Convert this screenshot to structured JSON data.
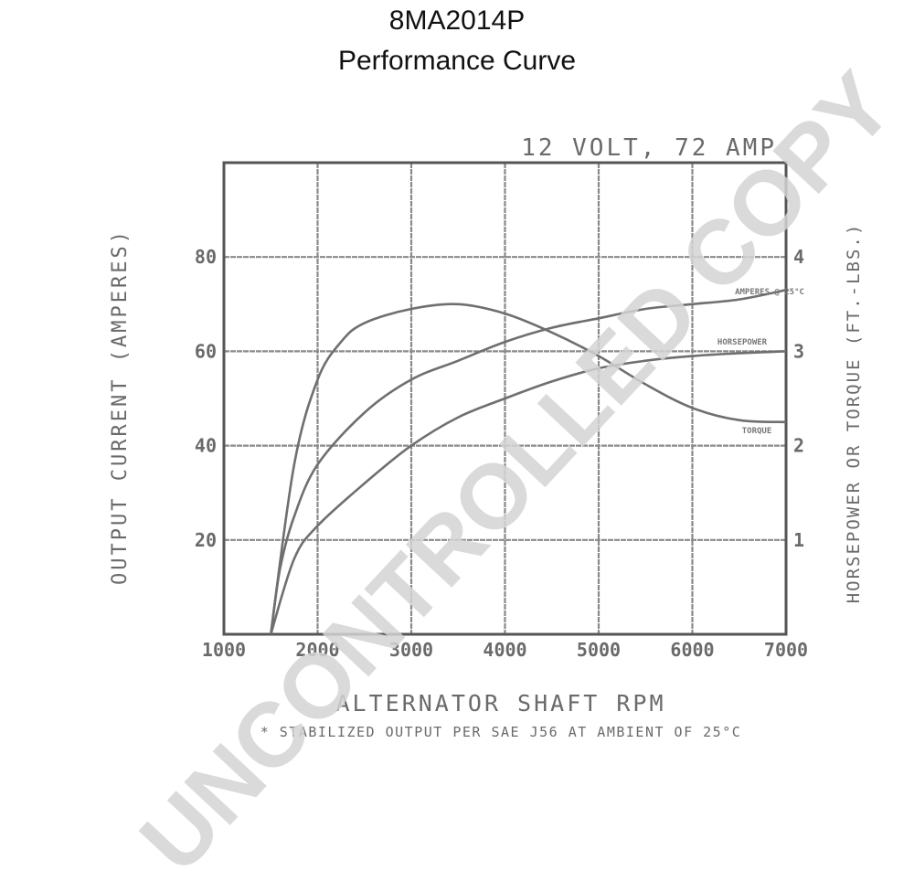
{
  "title_line1": "8MA2014P",
  "title_line2": "Performance Curve",
  "watermark": "UNCONTROLLED COPY",
  "chart_data": {
    "type": "line",
    "subtitle": "12 VOLT, 72 AMP",
    "xlabel": "ALTERNATOR SHAFT RPM",
    "ylabel": "OUTPUT CURRENT (AMPERES)",
    "y2label": "HORSEPOWER OR TORQUE (FT.-LBS.)",
    "footnote": "* STABILIZED OUTPUT PER SAE J56 AT AMBIENT OF 25°C",
    "xlim": [
      1000,
      7000
    ],
    "ylim": [
      0,
      100
    ],
    "y2lim": [
      0,
      5
    ],
    "xticks": [
      1000,
      2000,
      3000,
      4000,
      5000,
      6000,
      7000
    ],
    "yticks": [
      20,
      40,
      60,
      80
    ],
    "y2ticks": [
      1,
      2,
      3,
      4
    ],
    "grid": true,
    "colors": {
      "curve": "#6f6f6f",
      "grid": "#8a8a8a",
      "frame": "#555555",
      "text": "#6a6a6a",
      "watermark": "#d4d4d4"
    },
    "series": [
      {
        "name": "AMPS",
        "axis": "left",
        "label": "AMPERES @ 25°C",
        "x": [
          1500,
          1600,
          1750,
          2000,
          2500,
          3000,
          3500,
          4000,
          4500,
          5000,
          5500,
          6000,
          6500,
          7000
        ],
        "y": [
          0,
          14,
          25,
          36,
          47,
          54,
          58,
          62,
          65,
          67,
          69,
          70,
          71,
          73
        ]
      },
      {
        "name": "HORSEPOWER",
        "axis": "right",
        "label": "HORSEPOWER",
        "x": [
          1500,
          1750,
          2000,
          2500,
          3000,
          3500,
          4000,
          4500,
          5000,
          5500,
          6000,
          6500,
          7000
        ],
        "y": [
          0.0,
          0.8,
          1.15,
          1.6,
          2.0,
          2.3,
          2.5,
          2.68,
          2.82,
          2.9,
          2.95,
          2.98,
          3.0
        ]
      },
      {
        "name": "TORQUE",
        "axis": "right",
        "label": "TORQUE",
        "x": [
          1500,
          1750,
          2000,
          2250,
          2500,
          3000,
          3500,
          4000,
          4500,
          5000,
          5500,
          6000,
          6500,
          7000
        ],
        "y": [
          0.0,
          1.8,
          2.7,
          3.1,
          3.3,
          3.45,
          3.5,
          3.4,
          3.2,
          2.95,
          2.65,
          2.4,
          2.27,
          2.25
        ]
      }
    ]
  }
}
